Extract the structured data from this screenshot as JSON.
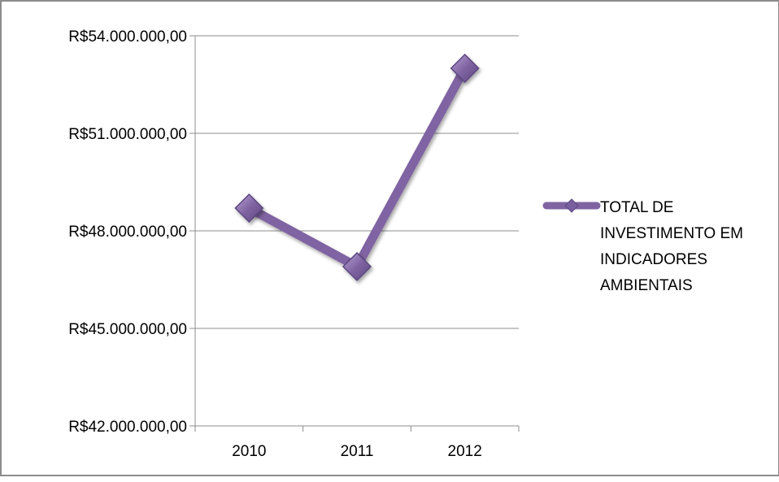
{
  "chart_data": {
    "type": "line",
    "categories": [
      "2010",
      "2011",
      "2012"
    ],
    "series": [
      {
        "name": "TOTAL DE INVESTIMENTO EM INDICADORES AMBIENTAIS",
        "values": [
          48700000,
          46900000,
          53000000
        ]
      }
    ],
    "ylim": [
      42000000,
      54000000
    ],
    "yticks": [
      42000000,
      45000000,
      48000000,
      51000000,
      54000000
    ],
    "ytick_labels": [
      "R$42.000.000,00",
      "R$45.000.000,00",
      "R$48.000.000,00",
      "R$51.000.000,00",
      "R$54.000.000,00"
    ],
    "grid": true,
    "legend_position": "right",
    "legend_lines": [
      "TOTAL DE",
      "INVESTIMENTO EM",
      "INDICADORES",
      "AMBIENTAIS"
    ],
    "colors": {
      "line": "#8064a2",
      "marker_fill": "#7a5fa0",
      "marker_stroke": "#5c4680",
      "grid": "#8c8c8c",
      "axis": "#8c8c8c"
    }
  }
}
